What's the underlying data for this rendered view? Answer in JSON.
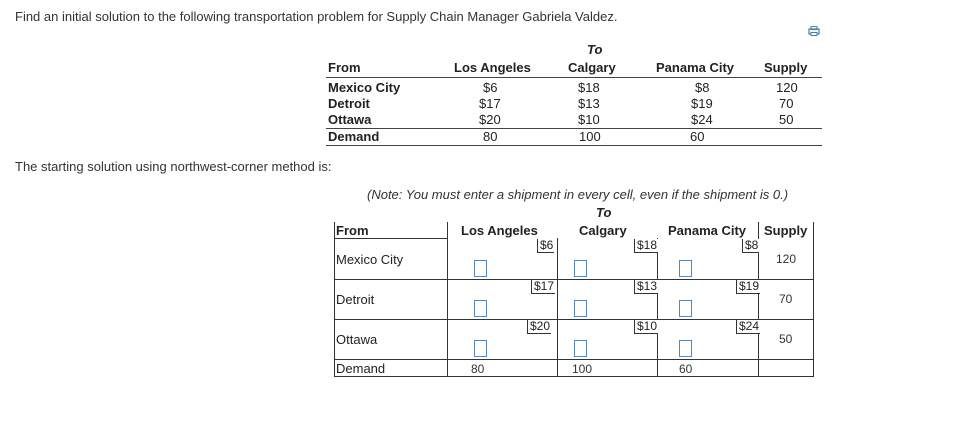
{
  "problem_text": "Find an initial solution to the following transportation problem for Supply Chain Manager Gabriela Valdez.",
  "print_icon": "print-icon",
  "summary": {
    "to_label": "To",
    "from_label": "From",
    "supply_label": "Supply",
    "demand_label": "Demand",
    "destinations": [
      "Los Angeles",
      "Calgary",
      "Panama City"
    ],
    "sources": [
      {
        "name": "Mexico City",
        "costs": [
          "$6",
          "$18",
          "$8"
        ],
        "supply": "120"
      },
      {
        "name": "Detroit",
        "costs": [
          "$17",
          "$13",
          "$19"
        ],
        "supply": "70"
      },
      {
        "name": "Ottawa",
        "costs": [
          "$20",
          "$10",
          "$24"
        ],
        "supply": "50"
      }
    ],
    "demand": [
      "80",
      "100",
      "60"
    ]
  },
  "subtitle": "The starting solution using northwest-corner method is:",
  "note": "(Note: You must enter a shipment in every cell, even if the shipment is 0.)",
  "solution": {
    "to_label": "To",
    "from_label": "From",
    "supply_label": "Supply",
    "demand_label": "Demand",
    "destinations": [
      "Los Angeles",
      "Calgary",
      "Panama City"
    ],
    "sources": [
      {
        "name": "Mexico City",
        "costs": [
          "$6",
          "$18",
          "$8"
        ],
        "supply": "120",
        "shipments": [
          "",
          "",
          ""
        ]
      },
      {
        "name": "Detroit",
        "costs": [
          "$17",
          "$13",
          "$19"
        ],
        "supply": "70",
        "shipments": [
          "",
          "",
          ""
        ]
      },
      {
        "name": "Ottawa",
        "costs": [
          "$20",
          "$10",
          "$24"
        ],
        "supply": "50",
        "shipments": [
          "",
          "",
          ""
        ]
      }
    ],
    "demand": [
      "80",
      "100",
      "60"
    ]
  }
}
